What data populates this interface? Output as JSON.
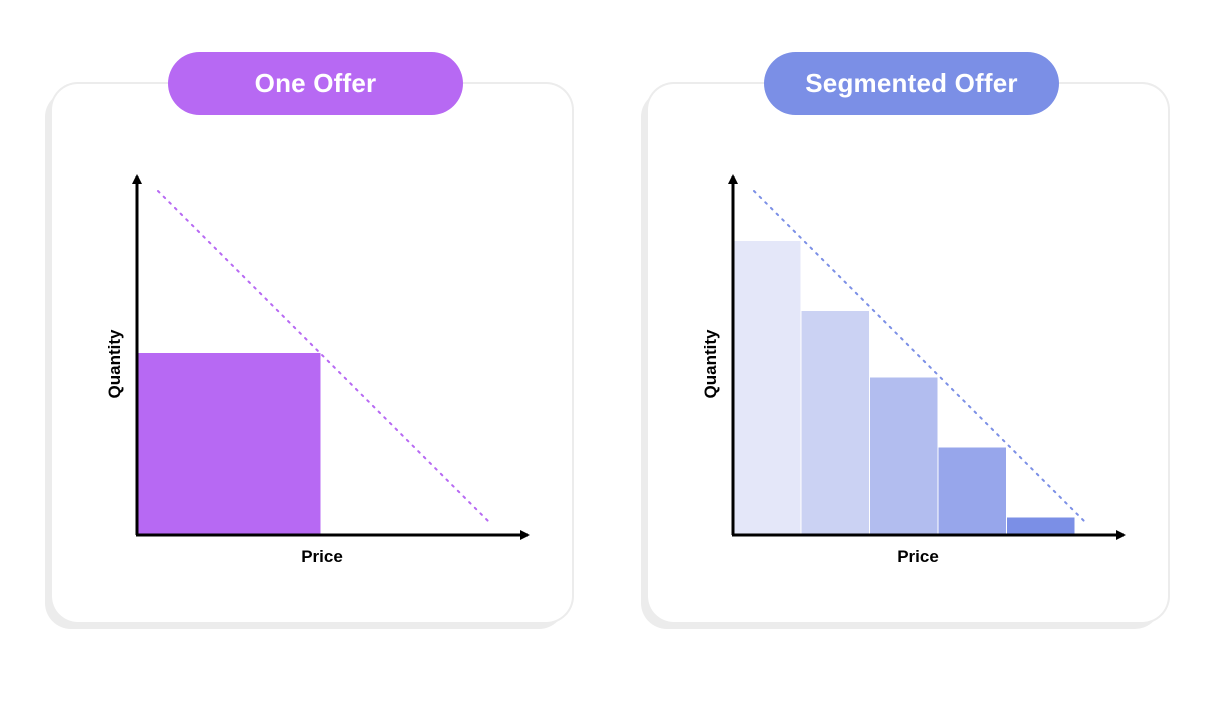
{
  "panels": [
    {
      "title": "One Offer",
      "accent": "#b769f3",
      "xlabel": "Price",
      "ylabel": "Quantity"
    },
    {
      "title": "Segmented Offer",
      "accent": "#7b8fe6",
      "xlabel": "Price",
      "ylabel": "Quantity"
    }
  ],
  "chart_data": [
    {
      "type": "bar",
      "title": "One Offer",
      "xlabel": "Price",
      "ylabel": "Quantity",
      "demand_line": "dotted",
      "bars": [
        {
          "width_fraction": 0.5,
          "height_fraction": 0.52,
          "color": "#b769f3"
        }
      ]
    },
    {
      "type": "bar",
      "title": "Segmented Offer",
      "xlabel": "Price",
      "ylabel": "Quantity",
      "demand_line": "dotted",
      "bars": [
        {
          "height_fraction": 0.84,
          "color": "#e4e7f9"
        },
        {
          "height_fraction": 0.64,
          "color": "#cbd2f3"
        },
        {
          "height_fraction": 0.45,
          "color": "#b2bdef"
        },
        {
          "height_fraction": 0.25,
          "color": "#97a6eb"
        },
        {
          "height_fraction": 0.05,
          "color": "#7b8fe6"
        }
      ]
    }
  ]
}
